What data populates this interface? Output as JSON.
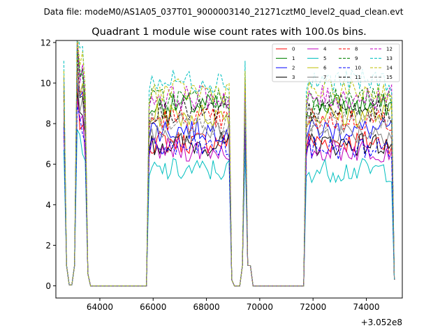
{
  "figure": {
    "suptitle": "Data file: modeM0/AS1A05_037T01_9000003140_21271cztM0_level2_quad_clean.evt"
  },
  "chart_data": {
    "type": "line",
    "title": "Quadrant 1 module wise count rates with 100.0s bins.",
    "xlabel": "",
    "ylabel": "",
    "x_offset_label": "+3.052e8",
    "xlim": [
      62350,
      75350
    ],
    "ylim": [
      -0.6,
      12.1
    ],
    "xticks": [
      64000,
      66000,
      68000,
      70000,
      72000,
      74000
    ],
    "xtick_labels": [
      "64000",
      "66000",
      "68000",
      "70000",
      "72000",
      "74000"
    ],
    "yticks": [
      0,
      2,
      4,
      6,
      8,
      10,
      12
    ],
    "ytick_labels": [
      "0",
      "2",
      "4",
      "6",
      "8",
      "10",
      "12"
    ],
    "grid": false,
    "legend_position": "upper right",
    "legend_columns": 4,
    "series": [
      {
        "name": "0",
        "color": "#ff0000",
        "style": "solid",
        "level": 7.1
      },
      {
        "name": "1",
        "color": "#008000",
        "style": "solid",
        "level": 8.9
      },
      {
        "name": "2",
        "color": "#0000ff",
        "style": "solid",
        "level": 7.7
      },
      {
        "name": "3",
        "color": "#000000",
        "style": "solid",
        "level": 7.0
      },
      {
        "name": "4",
        "color": "#bf00bf",
        "style": "solid",
        "level": 6.7
      },
      {
        "name": "5",
        "color": "#00bfbf",
        "style": "solid",
        "level": 5.7
      },
      {
        "name": "6",
        "color": "#bfbf00",
        "style": "solid",
        "level": 8.4
      },
      {
        "name": "7",
        "color": "#808080",
        "style": "solid",
        "level": 7.6
      },
      {
        "name": "8",
        "color": "#ff0000",
        "style": "dashed",
        "level": 8.2
      },
      {
        "name": "9",
        "color": "#008000",
        "style": "dashed",
        "level": 9.2
      },
      {
        "name": "10",
        "color": "#0000ff",
        "style": "dashed",
        "level": 6.8
      },
      {
        "name": "11",
        "color": "#000000",
        "style": "dashed",
        "level": 8.6
      },
      {
        "name": "12",
        "color": "#bf00bf",
        "style": "dashed",
        "level": 9.3
      },
      {
        "name": "13",
        "color": "#00bfbf",
        "style": "dashed",
        "level": 10.1
      },
      {
        "name": "14",
        "color": "#bfbf00",
        "style": "dashed",
        "level": 9.6
      },
      {
        "name": "15",
        "color": "#808080",
        "style": "dashed",
        "level": 8.0
      }
    ],
    "segments": [
      {
        "start": 62650,
        "end": 63550
      },
      {
        "start": 65850,
        "end": 68950
      },
      {
        "start": 69350,
        "end": 69650
      },
      {
        "start": 71750,
        "end": 75050
      }
    ],
    "bin_width": 100
  }
}
